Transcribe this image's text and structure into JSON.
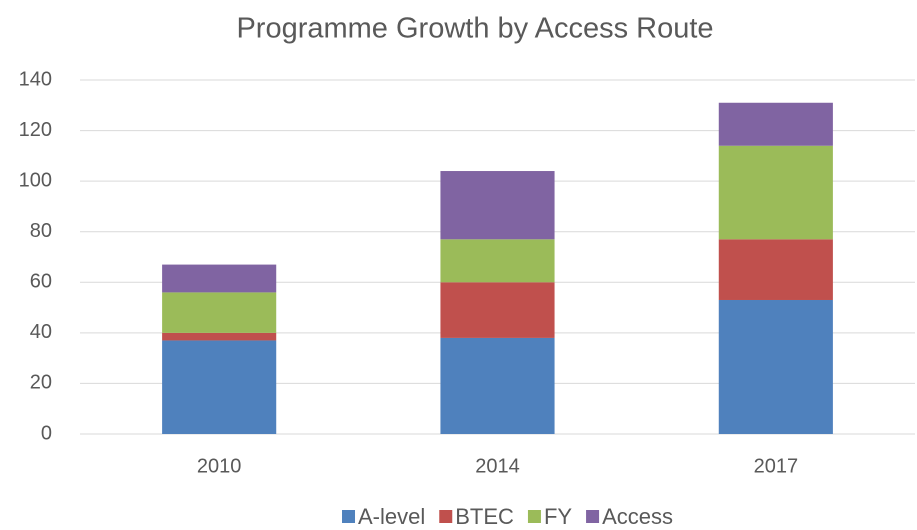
{
  "chart_data": {
    "type": "stacked_bar",
    "title": "Programme Growth by Access Route",
    "categories": [
      "2010",
      "2014",
      "2017"
    ],
    "series": [
      {
        "name": "A-level",
        "color": "#4f81bd",
        "values": [
          37,
          38,
          53
        ]
      },
      {
        "name": "BTEC",
        "color": "#c0504d",
        "values": [
          3,
          22,
          24
        ]
      },
      {
        "name": "FY",
        "color": "#9bbb59",
        "values": [
          16,
          17,
          37
        ]
      },
      {
        "name": "Access",
        "color": "#8064a2",
        "values": [
          11,
          27,
          17
        ]
      }
    ],
    "ylim": [
      0,
      140
    ],
    "yticks": [
      0,
      20,
      40,
      60,
      80,
      100,
      120,
      140
    ],
    "grid": true,
    "legend": "bottom"
  }
}
